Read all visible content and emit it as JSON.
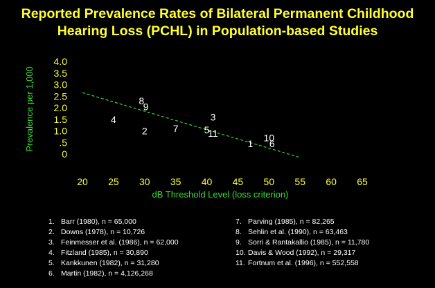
{
  "title": {
    "line1": "Reported Prevalence Rates of Bilateral Permanent Childhood",
    "line2": "Hearing Loss (PCHL) in Population-based Studies"
  },
  "colors": {
    "background": "#000000",
    "title": "#ffff33",
    "axis_label": "#33dd33",
    "trend": "#33dd33",
    "tick_label": "#ffff33",
    "point_label": "#ffffff"
  },
  "chart_data": {
    "type": "scatter",
    "xlabel": "dB Threshold Level (loss criterion)",
    "ylabel": "Prevalence per 1,000",
    "xlim": [
      20,
      65
    ],
    "ylim": [
      0,
      4.0
    ],
    "x_ticks": [
      20,
      25,
      30,
      35,
      40,
      45,
      50,
      55,
      60,
      65
    ],
    "x_tick_labels": [
      "20",
      "25",
      "30",
      "35",
      "40",
      "45",
      "50",
      "55",
      "60",
      "65"
    ],
    "y_ticks": [
      0,
      0.5,
      1.0,
      1.5,
      2.0,
      2.5,
      3.0,
      3.5,
      4.0
    ],
    "y_tick_labels": [
      "0",
      ".5",
      "1.0",
      "1.5",
      "2.0",
      "2.5",
      "3.0",
      "3.5",
      "4.0"
    ],
    "points": [
      {
        "label": "1",
        "x": 47,
        "y": 0.45
      },
      {
        "label": "2",
        "x": 30,
        "y": 1.0
      },
      {
        "label": "3",
        "x": 41,
        "y": 1.6
      },
      {
        "label": "4",
        "x": 25,
        "y": 1.5
      },
      {
        "label": "5",
        "x": 40,
        "y": 1.05
      },
      {
        "label": "6",
        "x": 50.5,
        "y": 0.45
      },
      {
        "label": "7",
        "x": 35,
        "y": 1.1
      },
      {
        "label": "8",
        "x": 29.5,
        "y": 2.3
      },
      {
        "label": "9",
        "x": 30.2,
        "y": 2.05
      },
      {
        "label": "10",
        "x": 50,
        "y": 0.7
      },
      {
        "label": "11",
        "x": 41,
        "y": 0.9
      }
    ],
    "trend_line": {
      "x": [
        20,
        55
      ],
      "y": [
        2.65,
        -0.15
      ],
      "style": "dashed"
    },
    "grid": false
  },
  "references": [
    {
      "num": "1.",
      "text": "Barr (1980), n = 65,000"
    },
    {
      "num": "2.",
      "text": "Downs (1978), n = 10,726"
    },
    {
      "num": "3.",
      "text": "Feinmesser et al. (1986), n = 62,000"
    },
    {
      "num": "4.",
      "text": "Fitzland (1985), n = 30,890"
    },
    {
      "num": "5.",
      "text": "Kankkunen (1982), n = 31,280"
    },
    {
      "num": "6.",
      "text": "Martin (1982), n = 4,126,268"
    },
    {
      "num": "7.",
      "text": "Parving (1985), n = 82,265"
    },
    {
      "num": "8.",
      "text": "Sehlin et al. (1990), n = 63,463"
    },
    {
      "num": "9.",
      "text": "Sorri & Rantakallio (1985), n = 11,780"
    },
    {
      "num": "10.",
      "text": "Davis & Wood (1992), n = 29,317"
    },
    {
      "num": "11.",
      "text": "Fortnum et al. (1996), n = 552,558"
    }
  ]
}
